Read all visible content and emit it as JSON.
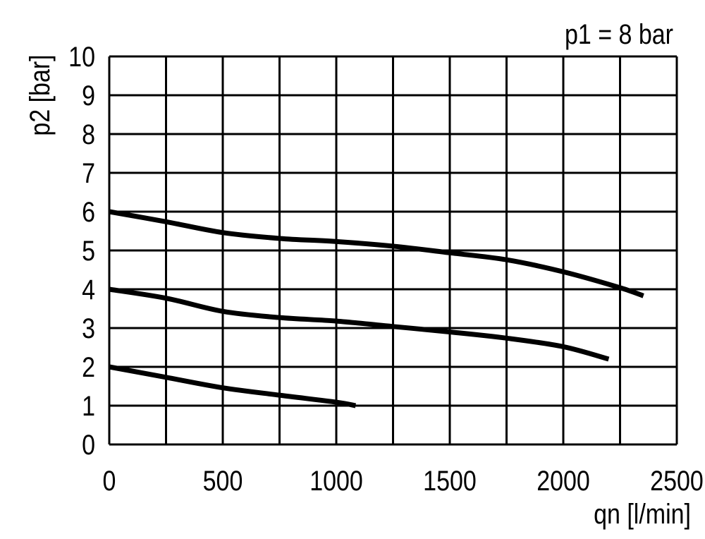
{
  "chart_data": {
    "type": "line",
    "title": "p1 = 8 bar",
    "xlabel": "qn [l/min]",
    "ylabel": "p2 [bar]",
    "xlim": [
      0,
      2500
    ],
    "ylim": [
      0,
      10
    ],
    "grid": true,
    "xticks": [
      "0",
      "500",
      "1000",
      "1500",
      "2000",
      "2500"
    ],
    "yticks": [
      "0",
      "1",
      "2",
      "3",
      "4",
      "5",
      "6",
      "7",
      "8",
      "9",
      "10"
    ],
    "colors": {
      "line": "#000000",
      "grid": "#000000"
    },
    "series": [
      {
        "x": [
          0,
          250,
          500,
          750,
          1000,
          1250,
          1500,
          1750,
          2000,
          2250,
          2353
        ],
        "y": [
          6.0,
          5.74,
          5.46,
          5.31,
          5.23,
          5.11,
          4.94,
          4.76,
          4.45,
          4.04,
          3.83
        ]
      },
      {
        "x": [
          0,
          250,
          500,
          750,
          1000,
          1250,
          1500,
          1750,
          2000,
          2200
        ],
        "y": [
          4.0,
          3.77,
          3.43,
          3.27,
          3.18,
          3.04,
          2.9,
          2.74,
          2.52,
          2.2
        ]
      },
      {
        "x": [
          0,
          250,
          500,
          750,
          1000,
          1085
        ],
        "y": [
          2.0,
          1.73,
          1.46,
          1.27,
          1.09,
          1.0
        ]
      }
    ]
  }
}
